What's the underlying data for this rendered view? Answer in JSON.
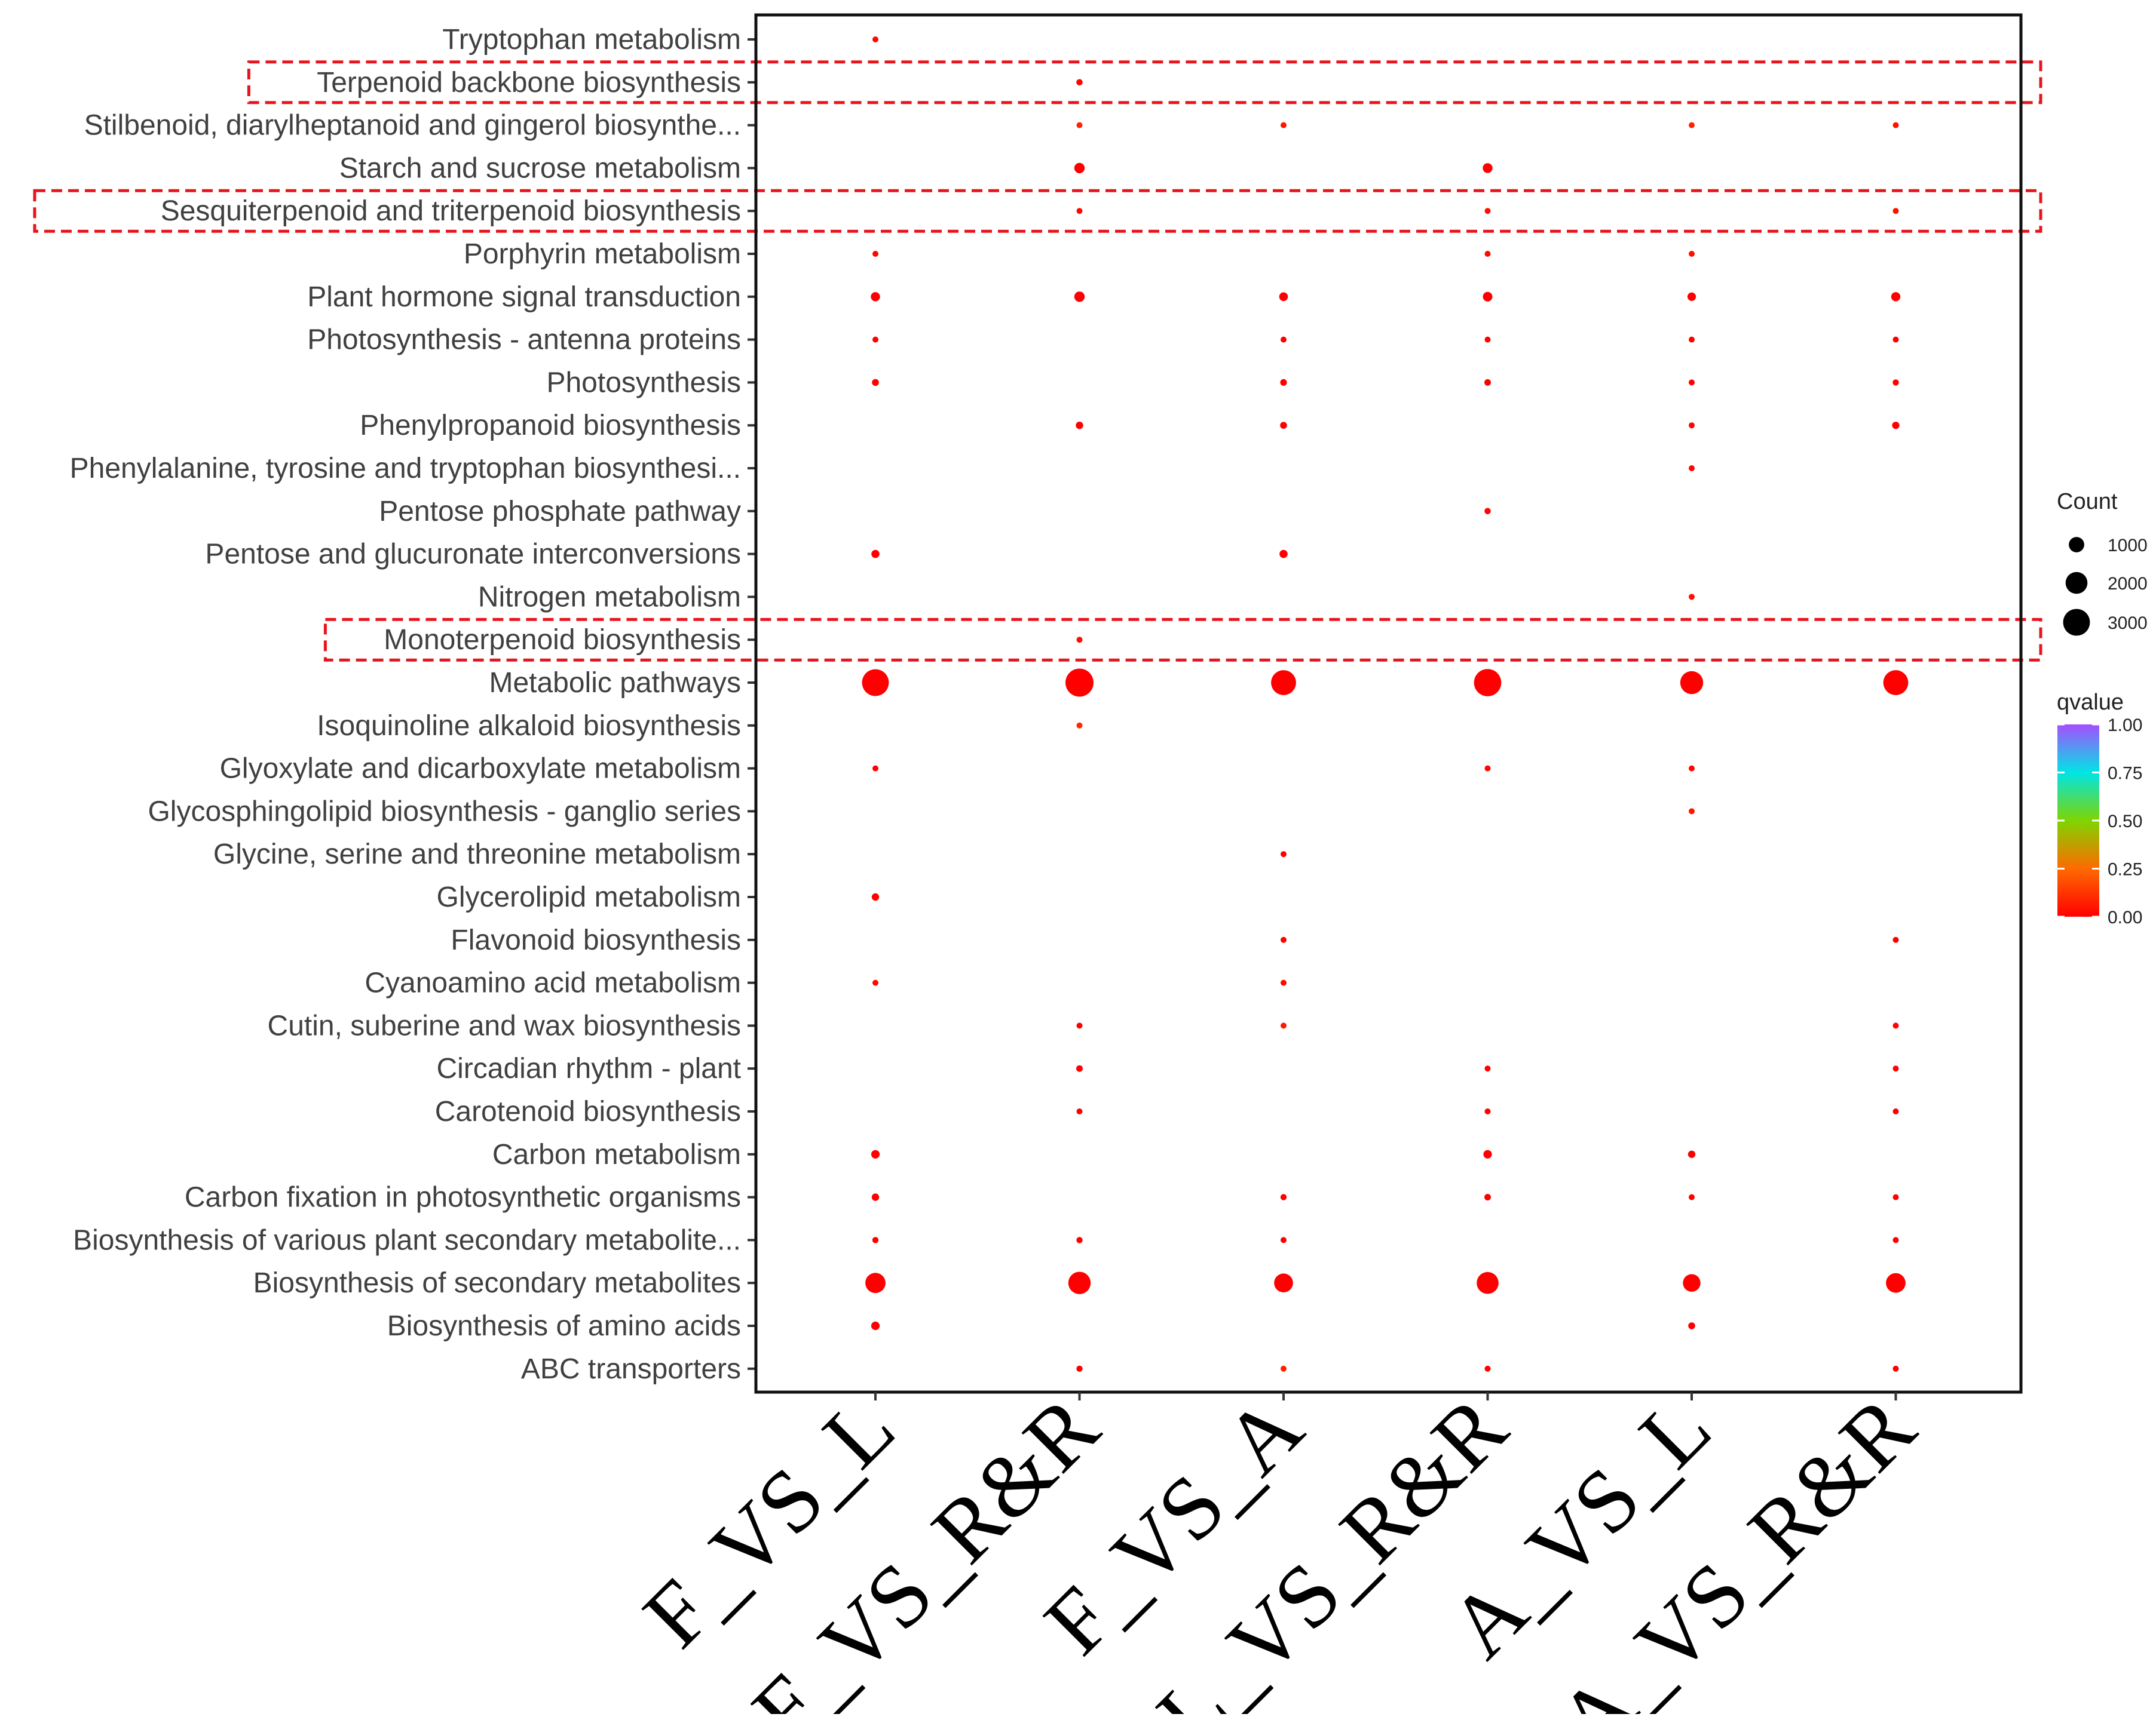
{
  "chart_data": {
    "type": "scatter",
    "subtype": "bubble",
    "title": "",
    "xlabel": "",
    "ylabel": "",
    "categories_x": [
      "F_VS_L",
      "F_VS_R&R",
      "F_VS_A",
      "L_VS_R&R",
      "A_VS_L",
      "A_VS_R&R"
    ],
    "categories_y": [
      "Tryptophan metabolism",
      "Terpenoid backbone biosynthesis",
      "Stilbenoid, diarylheptanoid and gingerol biosynthe...",
      "Starch and sucrose metabolism",
      "Sesquiterpenoid and triterpenoid biosynthesis",
      "Porphyrin metabolism",
      "Plant hormone signal transduction",
      "Photosynthesis - antenna proteins",
      "Photosynthesis",
      "Phenylpropanoid biosynthesis",
      "Phenylalanine, tyrosine and tryptophan biosynthesi...",
      "Pentose phosphate pathway",
      "Pentose and glucuronate interconversions",
      "Nitrogen metabolism",
      "Monoterpenoid biosynthesis",
      "Metabolic pathways",
      "Isoquinoline alkaloid biosynthesis",
      "Glyoxylate and dicarboxylate metabolism",
      "Glycosphingolipid biosynthesis - ganglio series",
      "Glycine, serine and threonine metabolism",
      "Glycerolipid metabolism",
      "Flavonoid biosynthesis",
      "Cyanoamino acid metabolism",
      "Cutin, suberine and wax biosynthesis",
      "Circadian rhythm - plant",
      "Carotenoid biosynthesis",
      "Carbon metabolism",
      "Carbon fixation in photosynthetic organisms",
      "Biosynthesis of various plant secondary metabolite...",
      "Biosynthesis of secondary metabolites",
      "Biosynthesis of amino acids",
      "ABC transporters"
    ],
    "highlighted_rows": [
      "Terpenoid backbone biosynthesis",
      "Sesquiterpenoid and triterpenoid biosynthesis",
      "Monoterpenoid biosynthesis"
    ],
    "points": [
      {
        "x": "F_VS_L",
        "y": "Tryptophan metabolism",
        "count": 120,
        "qvalue": 0.02
      },
      {
        "x": "F_VS_R&R",
        "y": "Terpenoid backbone biosynthesis",
        "count": 170,
        "qvalue": 0.01
      },
      {
        "x": "F_VS_R&R",
        "y": "Stilbenoid, diarylheptanoid and gingerol biosynthe...",
        "count": 110,
        "qvalue": 0.08
      },
      {
        "x": "F_VS_A",
        "y": "Stilbenoid, diarylheptanoid and gingerol biosynthe...",
        "count": 90,
        "qvalue": 0.05
      },
      {
        "x": "A_VS_L",
        "y": "Stilbenoid, diarylheptanoid and gingerol biosynthe...",
        "count": 40,
        "qvalue": 0.08
      },
      {
        "x": "A_VS_R&R",
        "y": "Stilbenoid, diarylheptanoid and gingerol biosynthe...",
        "count": 90,
        "qvalue": 0.04
      },
      {
        "x": "F_VS_R&R",
        "y": "Starch and sucrose metabolism",
        "count": 450,
        "qvalue": 0.0
      },
      {
        "x": "L_VS_R&R",
        "y": "Starch and sucrose metabolism",
        "count": 400,
        "qvalue": 0.0
      },
      {
        "x": "F_VS_R&R",
        "y": "Sesquiterpenoid and triterpenoid biosynthesis",
        "count": 90,
        "qvalue": 0.02
      },
      {
        "x": "L_VS_R&R",
        "y": "Sesquiterpenoid and triterpenoid biosynthesis",
        "count": 80,
        "qvalue": 0.03
      },
      {
        "x": "A_VS_R&R",
        "y": "Sesquiterpenoid and triterpenoid biosynthesis",
        "count": 70,
        "qvalue": 0.04
      },
      {
        "x": "F_VS_L",
        "y": "Porphyrin metabolism",
        "count": 110,
        "qvalue": 0.01
      },
      {
        "x": "L_VS_R&R",
        "y": "Porphyrin metabolism",
        "count": 90,
        "qvalue": 0.02
      },
      {
        "x": "A_VS_L",
        "y": "Porphyrin metabolism",
        "count": 60,
        "qvalue": 0.03
      },
      {
        "x": "F_VS_L",
        "y": "Plant hormone signal transduction",
        "count": 350,
        "qvalue": 0.0
      },
      {
        "x": "F_VS_R&R",
        "y": "Plant hormone signal transduction",
        "count": 450,
        "qvalue": 0.0
      },
      {
        "x": "F_VS_A",
        "y": "Plant hormone signal transduction",
        "count": 320,
        "qvalue": 0.0
      },
      {
        "x": "L_VS_R&R",
        "y": "Plant hormone signal transduction",
        "count": 380,
        "qvalue": 0.0
      },
      {
        "x": "A_VS_L",
        "y": "Plant hormone signal transduction",
        "count": 300,
        "qvalue": 0.0
      },
      {
        "x": "A_VS_R&R",
        "y": "Plant hormone signal transduction",
        "count": 350,
        "qvalue": 0.0
      },
      {
        "x": "F_VS_L",
        "y": "Photosynthesis - antenna proteins",
        "count": 150,
        "qvalue": 0.0
      },
      {
        "x": "F_VS_A",
        "y": "Photosynthesis - antenna proteins",
        "count": 150,
        "qvalue": 0.0
      },
      {
        "x": "L_VS_R&R",
        "y": "Photosynthesis - antenna proteins",
        "count": 140,
        "qvalue": 0.0
      },
      {
        "x": "A_VS_L",
        "y": "Photosynthesis - antenna proteins",
        "count": 120,
        "qvalue": 0.0
      },
      {
        "x": "A_VS_R&R",
        "y": "Photosynthesis - antenna proteins",
        "count": 120,
        "qvalue": 0.0
      },
      {
        "x": "F_VS_L",
        "y": "Photosynthesis",
        "count": 200,
        "qvalue": 0.0
      },
      {
        "x": "F_VS_A",
        "y": "Photosynthesis",
        "count": 190,
        "qvalue": 0.0
      },
      {
        "x": "L_VS_R&R",
        "y": "Photosynthesis",
        "count": 180,
        "qvalue": 0.0
      },
      {
        "x": "A_VS_L",
        "y": "Photosynthesis",
        "count": 150,
        "qvalue": 0.0
      },
      {
        "x": "A_VS_R&R",
        "y": "Photosynthesis",
        "count": 160,
        "qvalue": 0.0
      },
      {
        "x": "F_VS_R&R",
        "y": "Phenylpropanoid biosynthesis",
        "count": 230,
        "qvalue": 0.0
      },
      {
        "x": "F_VS_A",
        "y": "Phenylpropanoid biosynthesis",
        "count": 200,
        "qvalue": 0.0
      },
      {
        "x": "A_VS_L",
        "y": "Phenylpropanoid biosynthesis",
        "count": 130,
        "qvalue": 0.01
      },
      {
        "x": "A_VS_R&R",
        "y": "Phenylpropanoid biosynthesis",
        "count": 220,
        "qvalue": 0.0
      },
      {
        "x": "A_VS_L",
        "y": "Phenylalanine, tyrosine and tryptophan biosynthesi...",
        "count": 90,
        "qvalue": 0.01
      },
      {
        "x": "L_VS_R&R",
        "y": "Pentose phosphate pathway",
        "count": 170,
        "qvalue": 0.01
      },
      {
        "x": "F_VS_L",
        "y": "Pentose and glucuronate interconversions",
        "count": 280,
        "qvalue": 0.0
      },
      {
        "x": "F_VS_A",
        "y": "Pentose and glucuronate interconversions",
        "count": 280,
        "qvalue": 0.0
      },
      {
        "x": "A_VS_L",
        "y": "Nitrogen metabolism",
        "count": 60,
        "qvalue": 0.03
      },
      {
        "x": "F_VS_R&R",
        "y": "Monoterpenoid biosynthesis",
        "count": 100,
        "qvalue": 0.03
      },
      {
        "x": "F_VS_L",
        "y": "Metabolic pathways",
        "count": 3000,
        "qvalue": 0.0
      },
      {
        "x": "F_VS_R&R",
        "y": "Metabolic pathways",
        "count": 3300,
        "qvalue": 0.0
      },
      {
        "x": "F_VS_A",
        "y": "Metabolic pathways",
        "count": 2600,
        "qvalue": 0.0
      },
      {
        "x": "L_VS_R&R",
        "y": "Metabolic pathways",
        "count": 3100,
        "qvalue": 0.0
      },
      {
        "x": "A_VS_L",
        "y": "Metabolic pathways",
        "count": 2200,
        "qvalue": 0.0
      },
      {
        "x": "A_VS_R&R",
        "y": "Metabolic pathways",
        "count": 2600,
        "qvalue": 0.0
      },
      {
        "x": "F_VS_R&R",
        "y": "Isoquinoline alkaloid biosynthesis",
        "count": 130,
        "qvalue": 0.1
      },
      {
        "x": "F_VS_L",
        "y": "Glyoxylate and dicarboxylate metabolism",
        "count": 150,
        "qvalue": 0.0
      },
      {
        "x": "L_VS_R&R",
        "y": "Glyoxylate and dicarboxylate metabolism",
        "count": 120,
        "qvalue": 0.01
      },
      {
        "x": "A_VS_L",
        "y": "Glyoxylate and dicarboxylate metabolism",
        "count": 110,
        "qvalue": 0.01
      },
      {
        "x": "A_VS_L",
        "y": "Glycosphingolipid biosynthesis - ganglio series",
        "count": 20,
        "qvalue": 0.05
      },
      {
        "x": "F_VS_A",
        "y": "Glycine, serine and threonine metabolism",
        "count": 150,
        "qvalue": 0.0
      },
      {
        "x": "F_VS_L",
        "y": "Glycerolipid metabolism",
        "count": 230,
        "qvalue": 0.0
      },
      {
        "x": "F_VS_A",
        "y": "Flavonoid biosynthesis",
        "count": 120,
        "qvalue": 0.0
      },
      {
        "x": "A_VS_R&R",
        "y": "Flavonoid biosynthesis",
        "count": 100,
        "qvalue": 0.0
      },
      {
        "x": "F_VS_L",
        "y": "Cyanoamino acid metabolism",
        "count": 110,
        "qvalue": 0.02
      },
      {
        "x": "F_VS_A",
        "y": "Cyanoamino acid metabolism",
        "count": 100,
        "qvalue": 0.02
      },
      {
        "x": "F_VS_R&R",
        "y": "Cutin, suberine and wax biosynthesis",
        "count": 130,
        "qvalue": 0.0
      },
      {
        "x": "F_VS_A",
        "y": "Cutin, suberine and wax biosynthesis",
        "count": 90,
        "qvalue": 0.06
      },
      {
        "x": "A_VS_R&R",
        "y": "Cutin, suberine and wax biosynthesis",
        "count": 90,
        "qvalue": 0.01
      },
      {
        "x": "F_VS_R&R",
        "y": "Circadian rhythm - plant",
        "count": 180,
        "qvalue": 0.0
      },
      {
        "x": "L_VS_R&R",
        "y": "Circadian rhythm - plant",
        "count": 140,
        "qvalue": 0.0
      },
      {
        "x": "A_VS_R&R",
        "y": "Circadian rhythm - plant",
        "count": 130,
        "qvalue": 0.0
      },
      {
        "x": "F_VS_R&R",
        "y": "Carotenoid biosynthesis",
        "count": 140,
        "qvalue": 0.0
      },
      {
        "x": "L_VS_R&R",
        "y": "Carotenoid biosynthesis",
        "count": 110,
        "qvalue": 0.0
      },
      {
        "x": "A_VS_R&R",
        "y": "Carotenoid biosynthesis",
        "count": 90,
        "qvalue": 0.0
      },
      {
        "x": "F_VS_L",
        "y": "Carbon metabolism",
        "count": 300,
        "qvalue": 0.0
      },
      {
        "x": "L_VS_R&R",
        "y": "Carbon metabolism",
        "count": 300,
        "qvalue": 0.0
      },
      {
        "x": "A_VS_L",
        "y": "Carbon metabolism",
        "count": 230,
        "qvalue": 0.0
      },
      {
        "x": "F_VS_L",
        "y": "Carbon fixation in photosynthetic organisms",
        "count": 230,
        "qvalue": 0.0
      },
      {
        "x": "F_VS_A",
        "y": "Carbon fixation in photosynthetic organisms",
        "count": 160,
        "qvalue": 0.0
      },
      {
        "x": "L_VS_R&R",
        "y": "Carbon fixation in photosynthetic organisms",
        "count": 180,
        "qvalue": 0.0
      },
      {
        "x": "A_VS_L",
        "y": "Carbon fixation in photosynthetic organisms",
        "count": 140,
        "qvalue": 0.0
      },
      {
        "x": "A_VS_R&R",
        "y": "Carbon fixation in photosynthetic organisms",
        "count": 140,
        "qvalue": 0.0
      },
      {
        "x": "F_VS_L",
        "y": "Biosynthesis of various plant secondary metabolite...",
        "count": 160,
        "qvalue": 0.0
      },
      {
        "x": "F_VS_R&R",
        "y": "Biosynthesis of various plant secondary metabolite...",
        "count": 160,
        "qvalue": 0.0
      },
      {
        "x": "F_VS_A",
        "y": "Biosynthesis of various plant secondary metabolite...",
        "count": 150,
        "qvalue": 0.0
      },
      {
        "x": "A_VS_R&R",
        "y": "Biosynthesis of various plant secondary metabolite...",
        "count": 110,
        "qvalue": 0.0
      },
      {
        "x": "F_VS_L",
        "y": "Biosynthesis of secondary metabolites",
        "count": 1700,
        "qvalue": 0.0
      },
      {
        "x": "F_VS_R&R",
        "y": "Biosynthesis of secondary metabolites",
        "count": 2100,
        "qvalue": 0.0
      },
      {
        "x": "F_VS_A",
        "y": "Biosynthesis of secondary metabolites",
        "count": 1500,
        "qvalue": 0.0
      },
      {
        "x": "L_VS_R&R",
        "y": "Biosynthesis of secondary metabolites",
        "count": 2000,
        "qvalue": 0.0
      },
      {
        "x": "A_VS_L",
        "y": "Biosynthesis of secondary metabolites",
        "count": 1300,
        "qvalue": 0.0
      },
      {
        "x": "A_VS_R&R",
        "y": "Biosynthesis of secondary metabolites",
        "count": 1600,
        "qvalue": 0.0
      },
      {
        "x": "F_VS_L",
        "y": "Biosynthesis of amino acids",
        "count": 300,
        "qvalue": 0.0
      },
      {
        "x": "A_VS_L",
        "y": "Biosynthesis of amino acids",
        "count": 200,
        "qvalue": 0.0
      },
      {
        "x": "F_VS_R&R",
        "y": "ABC transporters",
        "count": 160,
        "qvalue": 0.0
      },
      {
        "x": "F_VS_A",
        "y": "ABC transporters",
        "count": 110,
        "qvalue": 0.08
      },
      {
        "x": "L_VS_R&R",
        "y": "ABC transporters",
        "count": 150,
        "qvalue": 0.0
      },
      {
        "x": "A_VS_R&R",
        "y": "ABC transporters",
        "count": 110,
        "qvalue": 0.0
      }
    ],
    "size_legend": {
      "title": "Count",
      "values": [
        1000,
        2000,
        3000
      ],
      "labels": [
        "1000",
        "2000",
        "3000"
      ]
    },
    "color_legend": {
      "title": "qvalue",
      "range": [
        0,
        1
      ],
      "ticks": [
        1.0,
        0.75,
        0.5,
        0.25,
        0.0
      ],
      "labels": [
        "1.00",
        "0.75",
        "0.50",
        "0.25",
        "0.00"
      ],
      "colors": [
        "#ff0000",
        "#ff6a00",
        "#7fd500",
        "#00e5e5",
        "#a64dff"
      ]
    },
    "legend_position": "right",
    "grid": false
  }
}
